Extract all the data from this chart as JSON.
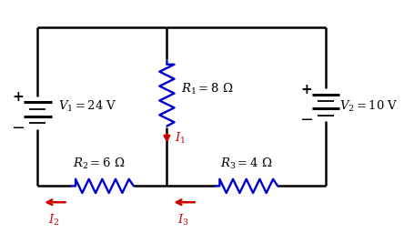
{
  "bg_color": "#ffffff",
  "line_color": "#000000",
  "resistor_color": "#0000cc",
  "arrow_color": "#cc0000",
  "fig_width": 4.44,
  "fig_height": 2.56,
  "dpi": 100,
  "labels": {
    "R1": "$R_1 = 8\\ \\Omega$",
    "R2": "$R_2 = 6\\ \\Omega$",
    "R3": "$R_3 = 4\\ \\Omega$",
    "V1": "$V_1 = 24\\ \\mathrm{V}$",
    "V2": "$V_2 = 10\\ \\mathrm{V}$",
    "I1": "$I_1$",
    "I2": "$I_2$",
    "I3": "$I_3$"
  },
  "font_size": 9.5
}
